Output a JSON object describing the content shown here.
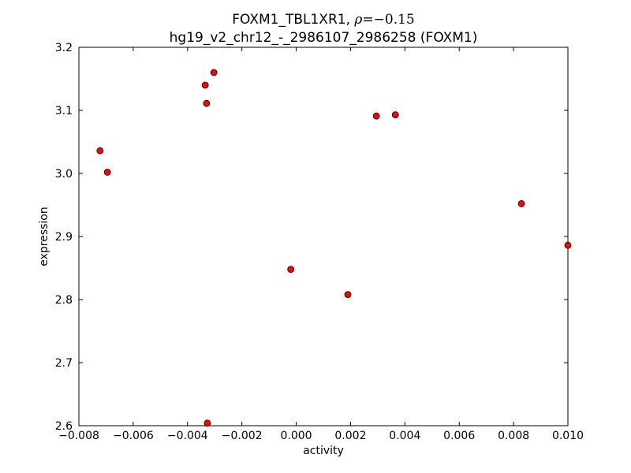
{
  "chart_data": {
    "type": "scatter",
    "title_line1_prefix": "FOXM1_TBL1XR1, ",
    "title_rho_symbol": "ρ",
    "title_rho_eq": "=−0.15",
    "title_line2": "hg19_v2_chr12_-_2986107_2986258 (FOXM1)",
    "xlabel": "activity",
    "ylabel": "expression",
    "xlim": [
      -0.008,
      0.01
    ],
    "ylim": [
      2.6,
      3.2
    ],
    "xticks": [
      -0.008,
      -0.006,
      -0.004,
      -0.002,
      0.0,
      0.002,
      0.004,
      0.006,
      0.008,
      0.01
    ],
    "xtick_labels": [
      "−0.008",
      "−0.006",
      "−0.004",
      "−0.002",
      "0.000",
      "0.002",
      "0.004",
      "0.006",
      "0.008",
      "0.010"
    ],
    "yticks": [
      2.6,
      2.7,
      2.8,
      2.9,
      3.0,
      3.1,
      3.2
    ],
    "ytick_labels": [
      "2.6",
      "2.7",
      "2.8",
      "2.9",
      "3.0",
      "3.1",
      "3.2"
    ],
    "marker_color": "#ff0000",
    "marker_edge": "#000000",
    "points": [
      {
        "x": -0.00722,
        "y": 3.036
      },
      {
        "x": -0.00695,
        "y": 3.002
      },
      {
        "x": -0.00335,
        "y": 3.14
      },
      {
        "x": -0.00303,
        "y": 3.16
      },
      {
        "x": -0.0033,
        "y": 3.111
      },
      {
        "x": -0.00327,
        "y": 2.604
      },
      {
        "x": -0.0002,
        "y": 2.848
      },
      {
        "x": 0.0019,
        "y": 2.808
      },
      {
        "x": 0.00295,
        "y": 3.091
      },
      {
        "x": 0.00365,
        "y": 3.093
      },
      {
        "x": 0.00829,
        "y": 2.952
      },
      {
        "x": 0.01,
        "y": 2.886
      }
    ]
  }
}
